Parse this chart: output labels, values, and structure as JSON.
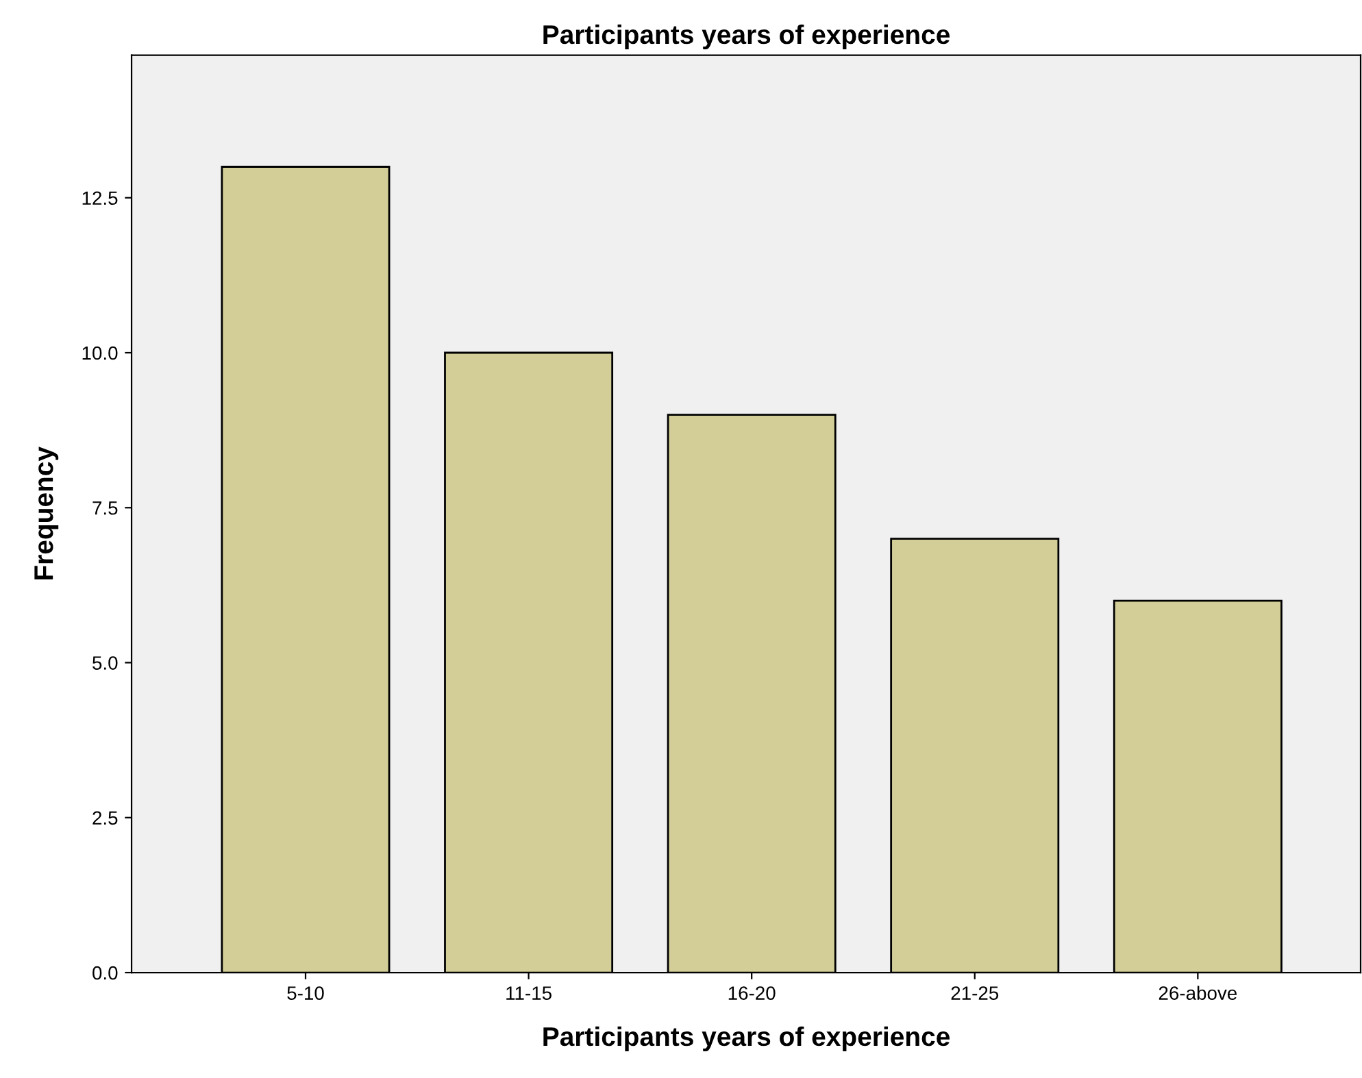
{
  "chart_data": {
    "type": "bar",
    "title": "Participants years of experience",
    "xlabel": "Participants years of experience",
    "ylabel": "Frequency",
    "categories": [
      "5-10",
      "11-15",
      "16-20",
      "21-25",
      "26-above"
    ],
    "values": [
      13,
      10,
      9,
      7,
      6
    ],
    "color": "#d3ce97",
    "ylim": [
      0,
      14.8
    ],
    "yticks": [
      {
        "value": 0,
        "label": "0.0"
      },
      {
        "value": 2.5,
        "label": "2.5"
      },
      {
        "value": 5,
        "label": "5.0"
      },
      {
        "value": 7.5,
        "label": "7.5"
      },
      {
        "value": 10,
        "label": "10.0"
      },
      {
        "value": 12.5,
        "label": "12.5"
      }
    ],
    "grid": false,
    "legend": false
  }
}
